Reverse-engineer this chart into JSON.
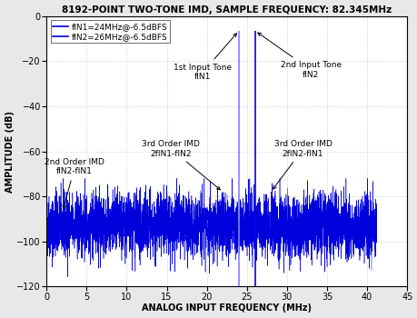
{
  "title": "8192-POINT TWO-TONE IMD, SAMPLE FREQUENCY: 82.345MHz",
  "xlabel": "ANALOG INPUT FREQUENCY (MHz)",
  "ylabel": "AMPLITUDE (dB)",
  "xlim": [
    0,
    45
  ],
  "ylim": [
    -120,
    0
  ],
  "yticks": [
    0,
    -20,
    -40,
    -60,
    -80,
    -100,
    -120
  ],
  "xticks": [
    0,
    5,
    10,
    15,
    20,
    25,
    30,
    35,
    40,
    45
  ],
  "fIN1": 24.0,
  "fIN2": 26.0,
  "fSAMPLE": 82.345,
  "tone_amplitude": -6.5,
  "noise_floor_mean": -93,
  "noise_floor_std": 7,
  "imd2_freq": 2.0,
  "imd3a_freq": 22.0,
  "imd3b_freq": 28.0,
  "legend_line1": "fIN1=24MHz@-6.5dBFS",
  "legend_line2": "fIN2=26MHz@-6.5dBFS",
  "background_color": "#e8e8e8",
  "plot_bg_color": "#ffffff",
  "line_color": "#0000dd",
  "tone1_color": "#8080ff",
  "tone2_color": "#0000ff",
  "grid_color": "#aaaaaa",
  "title_fontsize": 7.5,
  "axis_label_fontsize": 7,
  "tick_fontsize": 7,
  "annotation_fontsize": 6.5,
  "figwidth": 4.6,
  "figheight": 3.5
}
